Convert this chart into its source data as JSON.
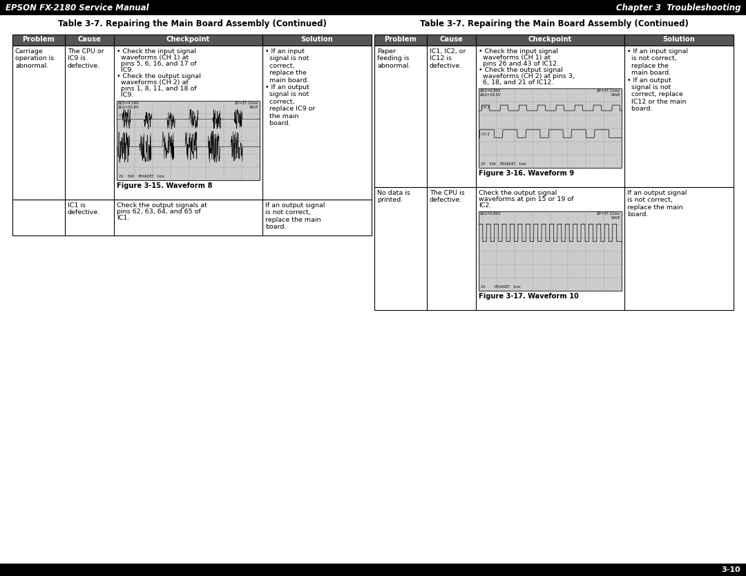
{
  "page_bg": "#ffffff",
  "header_bg": "#000000",
  "header_left": "EPSON FX-2180 Service Manual",
  "header_right": "Chapter 3  Troubleshooting",
  "footer_text": "3-10",
  "title": "Table 3-7. Repairing the Main Board Assembly (Continued)",
  "col_headers": [
    "Problem",
    "Cause",
    "Checkpoint",
    "Solution"
  ],
  "col_header_bg": "#555555",
  "left_rows": [
    {
      "problem": "Carriage\noperation is\nabnormal.",
      "cause": "The CPU or\nIC9 is\ndefective.",
      "checkpoint_text": "• Check the input signal\n  waveforms (CH 1) at\n  pins 5, 6, 16, and 17 of\n  IC9.\n• Check the output signal\n  waveforms (CH 2) at\n  pins 1, 8, 11, and 18 of\n  IC9.",
      "checkpoint_wf": "8",
      "checkpoint_cap": "Figure 3-15. Waveform 8",
      "solution": "• If an input\n  signal is not\n  correct,\n  replace the\n  main board.\n• If an output\n  signal is not\n  correct,\n  replace IC9 or\n  the main\n  board.",
      "has_wf": true
    },
    {
      "problem": "",
      "cause": "IC1 is\ndefective.",
      "checkpoint_text": "Check the output signals at\npins 62, 63, 64, and 65 of\nIC1.",
      "solution": "If an output signal\nis not correct,\nreplace the main\nboard.",
      "has_wf": false
    }
  ],
  "right_rows": [
    {
      "problem": "Paper\nfeeding is\nabnormal.",
      "cause": "IC1, IC2, or\nIC12 is\ndefective.",
      "checkpoint_text": "• Check the input signal\n  waveforms (CH 1) at\n  pins 26 and 43 of IC12.\n• Check the output signal\n  waveforms (CH 2) at pins 3,\n  6, 18, and 21 of IC12.",
      "checkpoint_wf": "9",
      "checkpoint_cap": "Figure 3-16. Waveform 9",
      "solution": "• If an input signal\n  is not correct,\n  replace the\n  main board.\n• If an output\n  signal is not\n  correct, replace\n  IC12 or the main\n  board.",
      "has_wf": true
    },
    {
      "problem": "No data is\nprinted.",
      "cause": "The CPU is\ndefective.",
      "checkpoint_text": "Check the output signal\nwaveforms at pin 15 or 19 of\nIC2.",
      "checkpoint_wf": "10",
      "checkpoint_cap": "Figure 3-17. Waveform 10",
      "solution": "If an output signal\nis not correct,\nreplace the main\nboard.",
      "has_wf": true
    }
  ],
  "wf8_top_left": "DU1=4.16V\nDU2=50.8V",
  "wf8_top_right": "DT=37.11ms\n50UF",
  "wf9_top_left": "DU1=0.80V\nDU2=18.0V",
  "wf9_top_right": "DT=37.11ms\nSAVE",
  "wf10_top_left": "DU1=0.80V",
  "wf10_top_right": "DT=37.11ms\nSAVE"
}
